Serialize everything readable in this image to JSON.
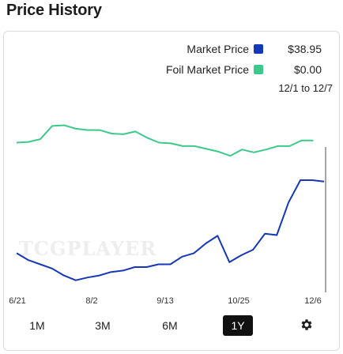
{
  "title": "Price History",
  "legend": [
    {
      "label": "Market Price",
      "value": "$38.95",
      "color": "#1538b8"
    },
    {
      "label": "Foil Market Price",
      "value": "$0.00",
      "color": "#3cc98a"
    }
  ],
  "date_range": "12/1 to 12/7",
  "watermark": "TCGPLAYER",
  "range_buttons": [
    "1M",
    "3M",
    "6M",
    "1Y"
  ],
  "active_range": "1Y",
  "settings_icon": "gear-icon",
  "chart_data": {
    "type": "line",
    "x_ticks": [
      "6/21",
      "8/2",
      "9/13",
      "10/25",
      "12/6"
    ],
    "series": [
      {
        "name": "Market Price",
        "color": "#1538b8",
        "values": [
          12.5,
          11.5,
          10.9,
          10.3,
          9.3,
          8.6,
          9.0,
          9.3,
          9.8,
          10.0,
          10.5,
          10.5,
          10.9,
          10.9,
          12.0,
          12.5,
          13.9,
          15.0,
          11.2,
          12.2,
          13.0,
          15.3,
          15.1,
          19.8,
          23.0,
          23.0,
          22.8
        ],
        "current_value": "$38.95"
      },
      {
        "name": "Foil Market Price",
        "color": "#3cc98a",
        "values": [
          28.4,
          28.5,
          28.9,
          30.8,
          30.9,
          30.4,
          30.2,
          30.2,
          29.7,
          29.6,
          30.0,
          29.1,
          28.4,
          28.3,
          27.9,
          27.9,
          27.5,
          27.1,
          26.5,
          27.4,
          27.0,
          27.4,
          27.9,
          27.9,
          28.7,
          28.7
        ],
        "current_value": "$0.00"
      }
    ],
    "grid": false,
    "legend_position": "top-right"
  }
}
